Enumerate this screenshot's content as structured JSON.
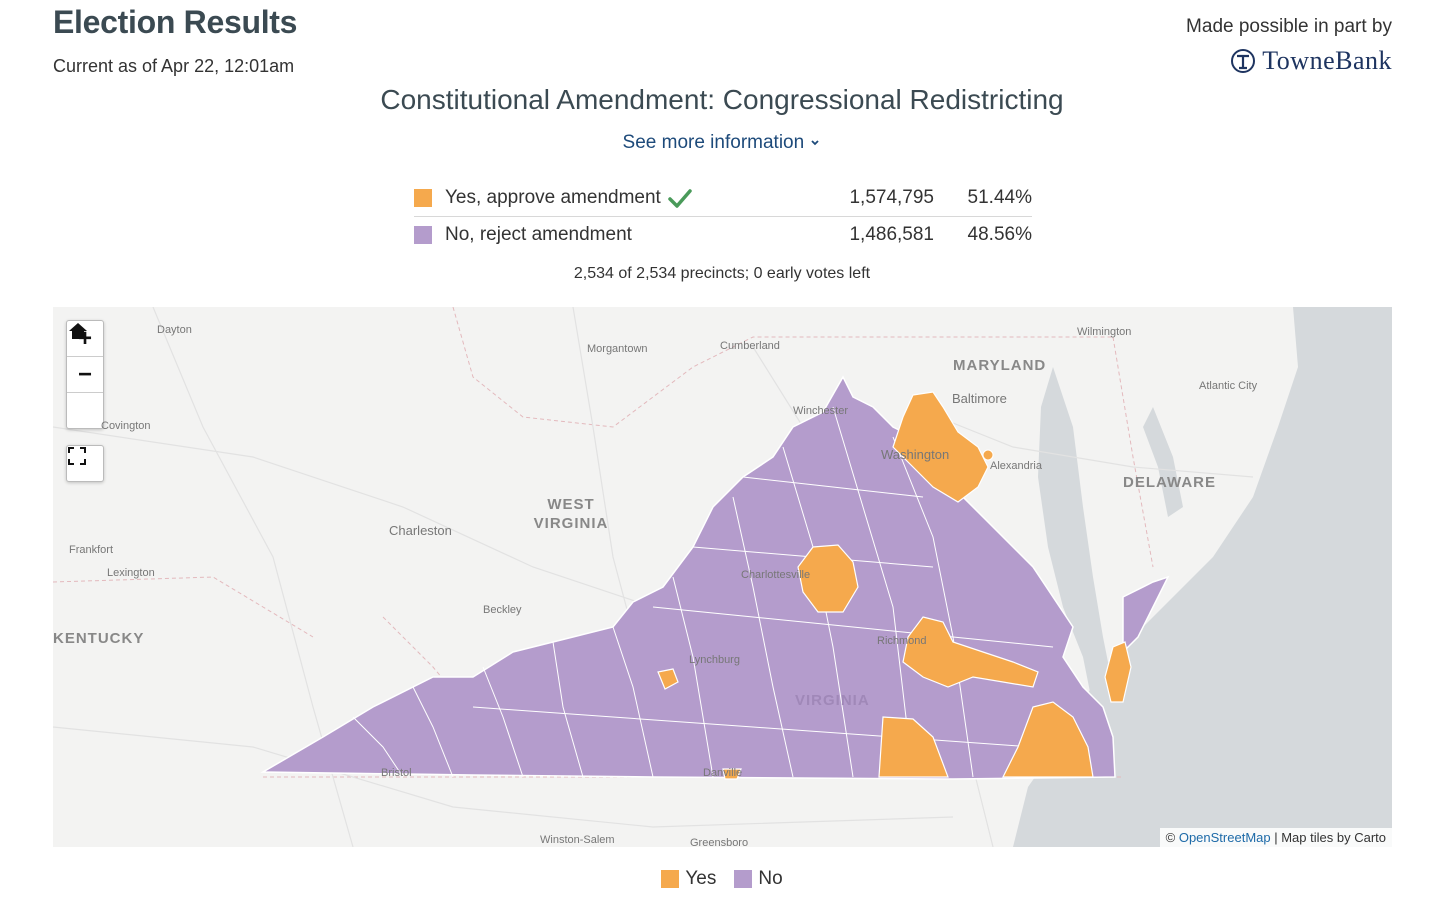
{
  "header": {
    "title": "Election Results",
    "updated": "Current as of Apr 22, 12:01am",
    "sponsor_text": "Made possible in part by",
    "sponsor_logo": "TowneBank"
  },
  "race": {
    "title": "Constitutional Amendment: Congressional Redistricting",
    "more_info": "See more information",
    "candidates": [
      {
        "label": "Yes, approve amendment",
        "votes": "1,574,795",
        "pct": "51.44%",
        "color": "#f5a94d",
        "winner": true
      },
      {
        "label": "No, reject amendment",
        "votes": "1,486,581",
        "pct": "48.56%",
        "color": "#b49ccc",
        "winner": false
      }
    ],
    "precincts": "2,534 of 2,534 precincts; 0 early votes left"
  },
  "map": {
    "controls": {
      "zoom_in": "+",
      "zoom_out": "−"
    },
    "place_labels": [
      "Dayton",
      "Morgantown",
      "Cumberland",
      "Wilmington",
      "Winchester",
      "Covington",
      "Alexandria",
      "Atlantic City",
      "Charleston",
      "Frankfort",
      "Lexington",
      "Beckley",
      "Charlottesville",
      "Lynchburg",
      "Richmond",
      "Bristol",
      "Danville",
      "Winston-Salem",
      "Greensboro",
      "Baltimore",
      "Washington"
    ],
    "region_labels": {
      "maryland": "MARYLAND",
      "west_virginia": "WEST VIRGINIA",
      "delaware": "DELAWARE",
      "kentucky": "KENTUCKY",
      "virginia": "VIRGINIA"
    },
    "attribution": {
      "prefix": "©",
      "link": "OpenStreetMap",
      "suffix": "| Map tiles by Carto"
    }
  },
  "legend": [
    {
      "label": "Yes",
      "color": "#f5a94d"
    },
    {
      "label": "No",
      "color": "#b49ccc"
    }
  ]
}
